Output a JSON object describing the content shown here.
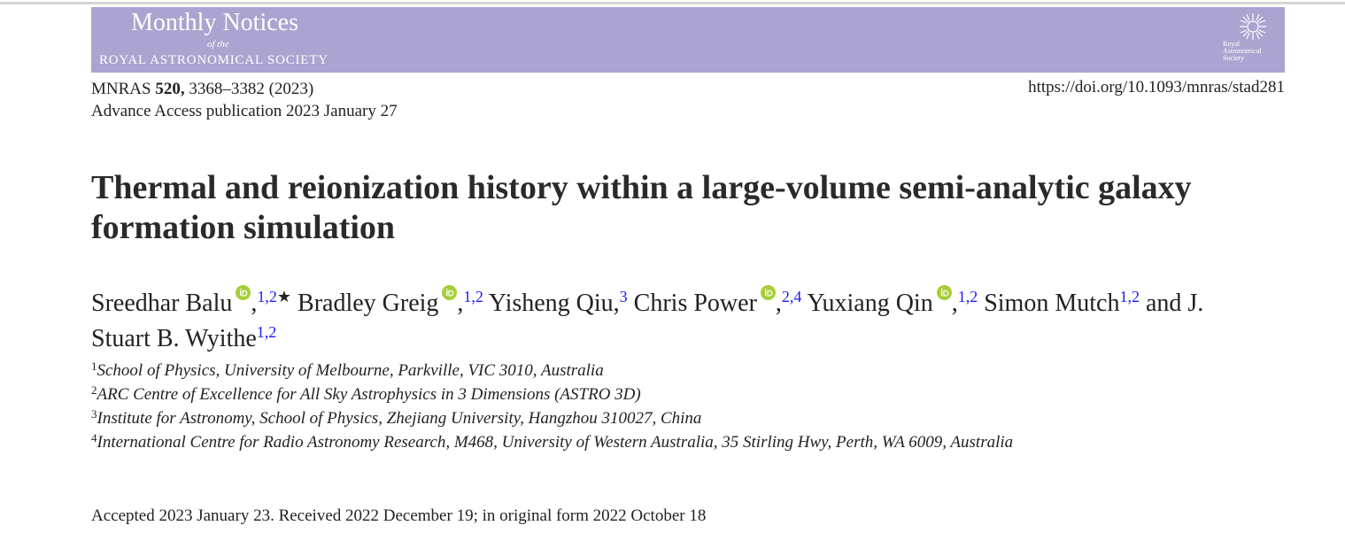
{
  "header": {
    "journal_name": "Monthly Notices",
    "of_the": "of the",
    "society": "ROYAL ASTRONOMICAL SOCIETY",
    "logo_text": [
      "Royal",
      "Astronomical",
      "Society"
    ]
  },
  "citation": {
    "journal": "MNRAS",
    "volume": "520,",
    "pages": "3368–3382 (2023)",
    "doi": "https://doi.org/10.1093/mnras/stad281",
    "advance_access": "Advance Access publication 2023 January 27"
  },
  "title": "Thermal and reionization history within a large-volume semi-analytic galaxy formation simulation",
  "authors": [
    {
      "name": "Sreedhar Balu",
      "orcid": true,
      "comma": ",",
      "sup": "1,2",
      "marker": "★"
    },
    {
      "name": "Bradley Greig",
      "orcid": true,
      "comma": ",",
      "sup": "1,2"
    },
    {
      "name": "Yisheng Qiu",
      "orcid": false,
      "comma": ",",
      "sup": "3"
    },
    {
      "name": "Chris Power",
      "orcid": true,
      "comma": ",",
      "sup": "2,4"
    },
    {
      "name": "Yuxiang Qin",
      "orcid": true,
      "comma": ",",
      "sup": "1,2"
    },
    {
      "name": "Simon Mutch",
      "orcid": false,
      "sup": "1,2"
    },
    {
      "prefix": "and",
      "name": "J. Stuart B. Wyithe",
      "orcid": false,
      "sup": "1,2"
    }
  ],
  "affiliations": [
    {
      "num": "1",
      "text": "School of Physics, University of Melbourne, Parkville, VIC 3010, Australia"
    },
    {
      "num": "2",
      "text": "ARC Centre of Excellence for All Sky Astrophysics in 3 Dimensions (ASTRO 3D)"
    },
    {
      "num": "3",
      "text": "Institute for Astronomy, School of Physics, Zhejiang University, Hangzhou 310027, China"
    },
    {
      "num": "4",
      "text": "International Centre for Radio Astronomy Research, M468, University of Western Australia, 35 Stirling Hwy, Perth, WA 6009, Australia"
    }
  ],
  "history": "Accepted 2023 January 23. Received 2022 December 19; in original form 2022 October 18"
}
